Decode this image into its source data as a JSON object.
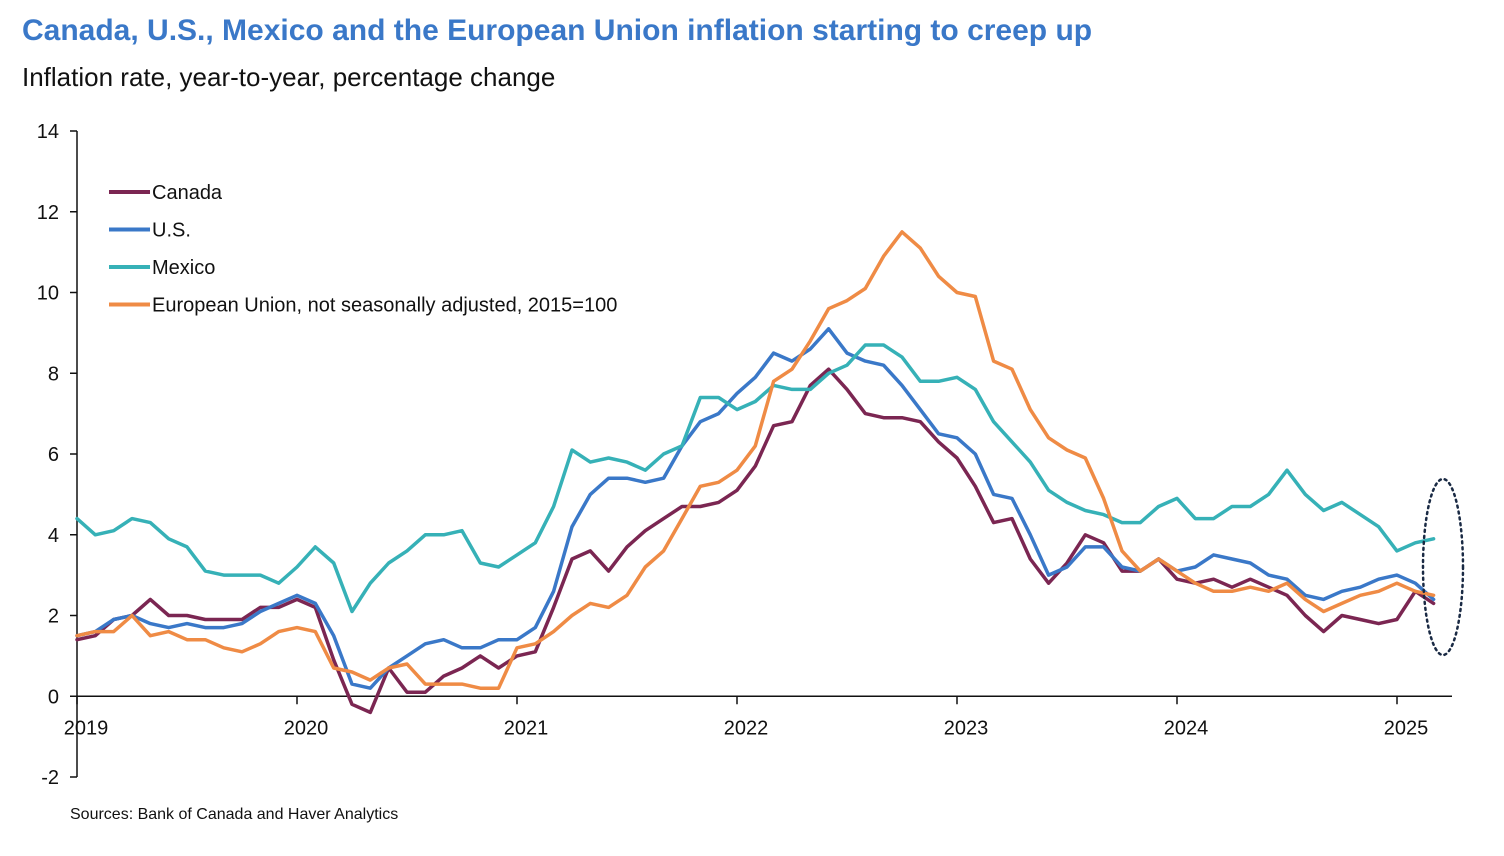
{
  "title": "Canada, U.S., Mexico and the European Union inflation starting to creep up",
  "subtitle": "Inflation rate, year-to-year, percentage change",
  "source": "Sources: Bank of Canada and Haver Analytics",
  "chart_data": {
    "type": "line",
    "title": "Canada, U.S., Mexico and the European Union inflation starting to creep up",
    "ylabel": "Inflation rate, year-to-year, percentage change",
    "xlabel": "",
    "ylim": [
      -2,
      14
    ],
    "xlim": [
      2019,
      2025.25
    ],
    "grid": false,
    "legend_position": "top-left",
    "x_ticks": [
      2019,
      2020,
      2021,
      2022,
      2023,
      2024,
      2025
    ],
    "x_tick_labels": [
      "2019",
      "2020",
      "2021",
      "2022",
      "2023",
      "2024",
      "2025"
    ],
    "y_ticks": [
      -2,
      0,
      2,
      4,
      6,
      8,
      10,
      12,
      14
    ],
    "y_tick_labels": [
      "-2",
      "0",
      "2",
      "4",
      "6",
      "8",
      "10",
      "12",
      "14"
    ],
    "x_start": 2019,
    "x_step": 0.08333,
    "annotation": "dotted ellipse highlighting latest observations (early 2025)",
    "series": [
      {
        "name": "Canada",
        "color": "#7b2652",
        "values": [
          1.4,
          1.5,
          1.9,
          2.0,
          2.4,
          2.0,
          2.0,
          1.9,
          1.9,
          1.9,
          2.2,
          2.2,
          2.4,
          2.2,
          0.9,
          -0.2,
          -0.4,
          0.7,
          0.1,
          0.1,
          0.5,
          0.7,
          1.0,
          0.7,
          1.0,
          1.1,
          2.2,
          3.4,
          3.6,
          3.1,
          3.7,
          4.1,
          4.4,
          4.7,
          4.7,
          4.8,
          5.1,
          5.7,
          6.7,
          6.8,
          7.7,
          8.1,
          7.6,
          7.0,
          6.9,
          6.9,
          6.8,
          6.3,
          5.9,
          5.2,
          4.3,
          4.4,
          3.4,
          2.8,
          3.3,
          4.0,
          3.8,
          3.1,
          3.1,
          3.4,
          2.9,
          2.8,
          2.9,
          2.7,
          2.9,
          2.7,
          2.5,
          2.0,
          1.6,
          2.0,
          1.9,
          1.8,
          1.9,
          2.6,
          2.3
        ]
      },
      {
        "name": "U.S.",
        "color": "#3a78c8",
        "values": [
          1.5,
          1.6,
          1.9,
          2.0,
          1.8,
          1.7,
          1.8,
          1.7,
          1.7,
          1.8,
          2.1,
          2.3,
          2.5,
          2.3,
          1.5,
          0.3,
          0.2,
          0.7,
          1.0,
          1.3,
          1.4,
          1.2,
          1.2,
          1.4,
          1.4,
          1.7,
          2.6,
          4.2,
          5.0,
          5.4,
          5.4,
          5.3,
          5.4,
          6.2,
          6.8,
          7.0,
          7.5,
          7.9,
          8.5,
          8.3,
          8.6,
          9.1,
          8.5,
          8.3,
          8.2,
          7.7,
          7.1,
          6.5,
          6.4,
          6.0,
          5.0,
          4.9,
          4.0,
          3.0,
          3.2,
          3.7,
          3.7,
          3.2,
          3.1,
          3.4,
          3.1,
          3.2,
          3.5,
          3.4,
          3.3,
          3.0,
          2.9,
          2.5,
          2.4,
          2.6,
          2.7,
          2.9,
          3.0,
          2.8,
          2.4
        ]
      },
      {
        "name": "Mexico",
        "color": "#36b1b7",
        "values": [
          4.4,
          4.0,
          4.1,
          4.4,
          4.3,
          3.9,
          3.7,
          3.1,
          3.0,
          3.0,
          3.0,
          2.8,
          3.2,
          3.7,
          3.3,
          2.1,
          2.8,
          3.3,
          3.6,
          4.0,
          4.0,
          4.1,
          3.3,
          3.2,
          3.5,
          3.8,
          4.7,
          6.1,
          5.8,
          5.9,
          5.8,
          5.6,
          6.0,
          6.2,
          7.4,
          7.4,
          7.1,
          7.3,
          7.7,
          7.6,
          7.6,
          8.0,
          8.2,
          8.7,
          8.7,
          8.4,
          7.8,
          7.8,
          7.9,
          7.6,
          6.8,
          6.3,
          5.8,
          5.1,
          4.8,
          4.6,
          4.5,
          4.3,
          4.3,
          4.7,
          4.9,
          4.4,
          4.4,
          4.7,
          4.7,
          5.0,
          5.6,
          5.0,
          4.6,
          4.8,
          4.5,
          4.2,
          3.6,
          3.8,
          3.9
        ]
      },
      {
        "name": "European Union, not seasonally adjusted, 2015=100",
        "color": "#ef8b45",
        "values": [
          1.5,
          1.6,
          1.6,
          2.0,
          1.5,
          1.6,
          1.4,
          1.4,
          1.2,
          1.1,
          1.3,
          1.6,
          1.7,
          1.6,
          0.7,
          0.6,
          0.4,
          0.7,
          0.8,
          0.3,
          0.3,
          0.3,
          0.2,
          0.2,
          1.2,
          1.3,
          1.6,
          2.0,
          2.3,
          2.2,
          2.5,
          3.2,
          3.6,
          4.4,
          5.2,
          5.3,
          5.6,
          6.2,
          7.8,
          8.1,
          8.8,
          9.6,
          9.8,
          10.1,
          10.9,
          11.5,
          11.1,
          10.4,
          10.0,
          9.9,
          8.3,
          8.1,
          7.1,
          6.4,
          6.1,
          5.9,
          4.9,
          3.6,
          3.1,
          3.4,
          3.1,
          2.8,
          2.6,
          2.6,
          2.7,
          2.6,
          2.8,
          2.4,
          2.1,
          2.3,
          2.5,
          2.6,
          2.8,
          2.6,
          2.5
        ]
      }
    ]
  }
}
